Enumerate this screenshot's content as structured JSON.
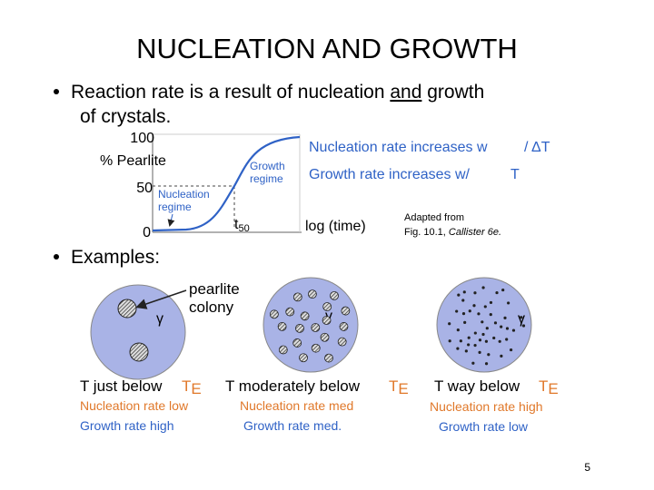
{
  "title": "NUCLEATION AND GROWTH",
  "bullets": [
    {
      "parts": [
        "Reaction rate is a result of nucleation ",
        "and",
        " growth"
      ],
      "continuation": "of crystals."
    },
    {
      "text": "Examples:"
    }
  ],
  "figure": {
    "y_labels": [
      "100",
      "50",
      "0"
    ],
    "y_axis_label": "% Pearlite",
    "x_axis_label": "log (time)",
    "t50": {
      "base": "t",
      "subscript": "50"
    },
    "nucleation_regime": [
      "Nucleation",
      "regime"
    ],
    "growth_regime": [
      "Growth",
      "regime"
    ],
    "notes": [
      {
        "text": "Nucleation rate increases w",
        "tail": "/ ΔT"
      },
      {
        "text": "Growth  rate increases w/",
        "tail": "T"
      }
    ],
    "credit": {
      "line1": "Adapted from",
      "line2": "Fig. 10.1, ",
      "line2_italic": "Callister 6e."
    }
  },
  "callout": [
    "pearlite",
    "colony"
  ],
  "phase_symbol": "γ",
  "te": {
    "base": "T",
    "subscript": "E"
  },
  "examples": [
    {
      "temperature": "T just below",
      "nucleation": "Nucleation rate low",
      "growth": "Growth rate high"
    },
    {
      "temperature": "T moderately below",
      "nucleation": "Nucleation rate med",
      "growth": "Growth rate med."
    },
    {
      "temperature": "T way below",
      "nucleation": "Nucleation rate high",
      "growth": "Growth rate low"
    }
  ],
  "page_number": "5"
}
